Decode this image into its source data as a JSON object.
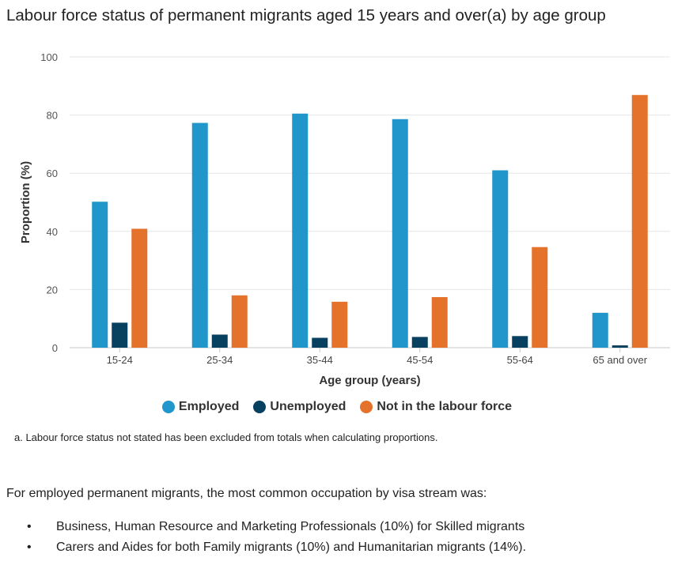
{
  "page": {
    "title": "Labour force status of permanent migrants aged 15 years and over(a) by age group",
    "footnote": "a. Labour force status not stated has been excluded from totals when calculating proportions.",
    "paragraph": "For employed permanent migrants, the most common occupation by visa stream was:",
    "bullets": [
      "Business, Human Resource and Marketing Professionals (10%) for Skilled migrants",
      "Carers and Aides for both Family migrants (10%) and Humanitarian migrants (14%)."
    ],
    "bullet_glyph": "•"
  },
  "chart_data": {
    "type": "bar",
    "title": "Labour force status of permanent migrants aged 15 years and over(a) by age group",
    "xlabel": "Age group (years)",
    "ylabel": "Proportion (%)",
    "ylim": [
      0,
      100
    ],
    "yticks": [
      0,
      20,
      40,
      60,
      80,
      100
    ],
    "grid": true,
    "legend_position": "bottom",
    "categories": [
      "15-24",
      "25-34",
      "35-44",
      "45-54",
      "55-64",
      "65 and over"
    ],
    "series": [
      {
        "name": "Employed",
        "color": "#2196CB",
        "values": [
          50.2,
          77.3,
          80.5,
          78.6,
          61.0,
          12.0
        ]
      },
      {
        "name": "Unemployed",
        "color": "#07415F",
        "values": [
          8.6,
          4.5,
          3.4,
          3.7,
          4.0,
          0.8
        ]
      },
      {
        "name": "Not in the labour force",
        "color": "#E5722A",
        "values": [
          40.9,
          18.0,
          15.8,
          17.4,
          34.6,
          86.9
        ]
      }
    ]
  }
}
